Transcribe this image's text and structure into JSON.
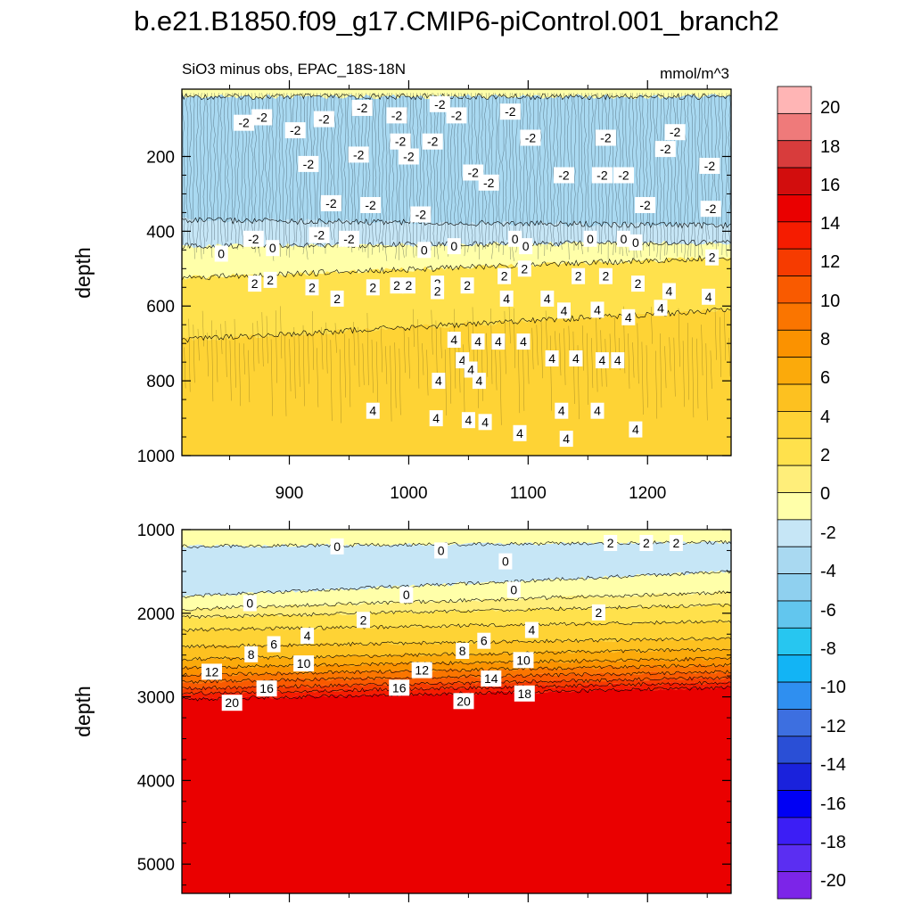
{
  "title": "b.e21.B1850.f09_g17.CMIP6-piControl.001_branch2",
  "colors": {
    "levels": [
      "#7c25e8",
      "#5b2ef2",
      "#3c1ef5",
      "#0000f4",
      "#1a22dc",
      "#2a4fd6",
      "#3d6fe0",
      "#2f8ff0",
      "#12b4f5",
      "#27c6f0",
      "#62c6ee",
      "#8fd0ef",
      "#a9d9f1",
      "#c6e6f6",
      "#ffffa9",
      "#ffee7a",
      "#ffe14c",
      "#fed335",
      "#fdc120",
      "#fbaa0b",
      "#fb9200",
      "#fa7500",
      "#f95a00",
      "#f63b00",
      "#f51c00",
      "#ea0000",
      "#d20d0d",
      "#d83c3c",
      "#ef7a7a",
      "#ffb5b5"
    ],
    "background": "#ffffff"
  },
  "chart_data": [
    {
      "type": "contour",
      "subtitle_left": "SiO3 minus obs, EPAC_18S-18N",
      "subtitle_right": "mmol/m^3",
      "ylabel": "depth",
      "xlabel": "",
      "xlim": [
        810,
        1270
      ],
      "ylim": [
        1000,
        20
      ],
      "yreverse": true,
      "xticks": [
        900,
        1000,
        1100,
        1200
      ],
      "xtick_labels": [
        "900",
        "1000",
        "1100",
        "1200"
      ],
      "yticks": [
        200,
        400,
        600,
        800,
        1000
      ],
      "ytick_labels": [
        "200",
        "400",
        "600",
        "800",
        "1000"
      ],
      "bands": [
        {
          "level": 0,
          "top": [
            20,
            20
          ],
          "bottom": [
            40,
            40
          ]
        },
        {
          "level": -2,
          "top": [
            40,
            40
          ],
          "bottom": [
            370,
            385
          ]
        },
        {
          "level": -1,
          "top": [
            370,
            385
          ],
          "bottom": [
            440,
            430
          ]
        },
        {
          "level": 0,
          "top": [
            440,
            430
          ],
          "bottom": [
            525,
            470
          ]
        },
        {
          "level": 2,
          "top": [
            525,
            470
          ],
          "bottom": [
            690,
            610
          ]
        },
        {
          "level": 4,
          "top": [
            690,
            610
          ],
          "bottom": [
            1000,
            1000
          ]
        }
      ],
      "contour_labels": [
        {
          "x": 862,
          "y": 110,
          "t": "-2"
        },
        {
          "x": 877,
          "y": 95,
          "t": "-2"
        },
        {
          "x": 905,
          "y": 130,
          "t": "-2"
        },
        {
          "x": 929,
          "y": 100,
          "t": "-2"
        },
        {
          "x": 961,
          "y": 70,
          "t": "-2"
        },
        {
          "x": 990,
          "y": 90,
          "t": "-2"
        },
        {
          "x": 1026,
          "y": 60,
          "t": "-2"
        },
        {
          "x": 1040,
          "y": 90,
          "t": "-2"
        },
        {
          "x": 1085,
          "y": 80,
          "t": "-2"
        },
        {
          "x": 1102,
          "y": 150,
          "t": "-2"
        },
        {
          "x": 1165,
          "y": 150,
          "t": "-2"
        },
        {
          "x": 1223,
          "y": 135,
          "t": "-2"
        },
        {
          "x": 1215,
          "y": 180,
          "t": "-2"
        },
        {
          "x": 1252,
          "y": 225,
          "t": "-2"
        },
        {
          "x": 916,
          "y": 220,
          "t": "-2"
        },
        {
          "x": 958,
          "y": 195,
          "t": "-2"
        },
        {
          "x": 1000,
          "y": 200,
          "t": "-2"
        },
        {
          "x": 1054,
          "y": 243,
          "t": "-2"
        },
        {
          "x": 1130,
          "y": 250,
          "t": "-2"
        },
        {
          "x": 1162,
          "y": 250,
          "t": "-2"
        },
        {
          "x": 1180,
          "y": 250,
          "t": "-2"
        },
        {
          "x": 1198,
          "y": 330,
          "t": "-2"
        },
        {
          "x": 1253,
          "y": 340,
          "t": "-2"
        },
        {
          "x": 935,
          "y": 325,
          "t": "-2"
        },
        {
          "x": 968,
          "y": 330,
          "t": "-2"
        },
        {
          "x": 1010,
          "y": 355,
          "t": "-2"
        },
        {
          "x": 870,
          "y": 420,
          "t": "-2"
        },
        {
          "x": 925,
          "y": 410,
          "t": "-2"
        },
        {
          "x": 950,
          "y": 420,
          "t": "-2"
        },
        {
          "x": 1067,
          "y": 270,
          "t": "-2"
        },
        {
          "x": 1020,
          "y": 160,
          "t": "-2"
        },
        {
          "x": 993,
          "y": 160,
          "t": "-2"
        },
        {
          "x": 843,
          "y": 460,
          "t": "0"
        },
        {
          "x": 886,
          "y": 445,
          "t": "0"
        },
        {
          "x": 1038,
          "y": 440,
          "t": "0"
        },
        {
          "x": 1089,
          "y": 420,
          "t": "0"
        },
        {
          "x": 1152,
          "y": 420,
          "t": "0"
        },
        {
          "x": 1180,
          "y": 420,
          "t": "0"
        },
        {
          "x": 1190,
          "y": 430,
          "t": "0"
        },
        {
          "x": 1098,
          "y": 440,
          "t": "0"
        },
        {
          "x": 1013,
          "y": 450,
          "t": "0"
        },
        {
          "x": 1254,
          "y": 470,
          "t": "2"
        },
        {
          "x": 1142,
          "y": 520,
          "t": "2"
        },
        {
          "x": 1165,
          "y": 520,
          "t": "2"
        },
        {
          "x": 1192,
          "y": 540,
          "t": "2"
        },
        {
          "x": 1080,
          "y": 520,
          "t": "2"
        },
        {
          "x": 1049,
          "y": 545,
          "t": "2"
        },
        {
          "x": 1024,
          "y": 540,
          "t": "2"
        },
        {
          "x": 990,
          "y": 545,
          "t": "2"
        },
        {
          "x": 970,
          "y": 550,
          "t": "2"
        },
        {
          "x": 919,
          "y": 550,
          "t": "2"
        },
        {
          "x": 884,
          "y": 530,
          "t": "2"
        },
        {
          "x": 871,
          "y": 540,
          "t": "2"
        },
        {
          "x": 1097,
          "y": 500,
          "t": "2"
        },
        {
          "x": 1024,
          "y": 560,
          "t": "2"
        },
        {
          "x": 1000,
          "y": 545,
          "t": "2"
        },
        {
          "x": 940,
          "y": 580,
          "t": "2"
        },
        {
          "x": 1218,
          "y": 560,
          "t": "4"
        },
        {
          "x": 1251,
          "y": 575,
          "t": "4"
        },
        {
          "x": 1211,
          "y": 605,
          "t": "4"
        },
        {
          "x": 1184,
          "y": 630,
          "t": "4"
        },
        {
          "x": 1158,
          "y": 610,
          "t": "4"
        },
        {
          "x": 1116,
          "y": 580,
          "t": "4"
        },
        {
          "x": 1082,
          "y": 580,
          "t": "4"
        },
        {
          "x": 1130,
          "y": 612,
          "t": "4"
        },
        {
          "x": 1038,
          "y": 690,
          "t": "4"
        },
        {
          "x": 1058,
          "y": 695,
          "t": "4"
        },
        {
          "x": 1075,
          "y": 695,
          "t": "4"
        },
        {
          "x": 1096,
          "y": 695,
          "t": "4"
        },
        {
          "x": 1120,
          "y": 740,
          "t": "4"
        },
        {
          "x": 1140,
          "y": 740,
          "t": "4"
        },
        {
          "x": 1162,
          "y": 745,
          "t": "4"
        },
        {
          "x": 1175,
          "y": 745,
          "t": "4"
        },
        {
          "x": 1045,
          "y": 745,
          "t": "4"
        },
        {
          "x": 1052,
          "y": 770,
          "t": "4"
        },
        {
          "x": 1059,
          "y": 800,
          "t": "4"
        },
        {
          "x": 1025,
          "y": 800,
          "t": "4"
        },
        {
          "x": 1023,
          "y": 900,
          "t": "4"
        },
        {
          "x": 1050,
          "y": 905,
          "t": "4"
        },
        {
          "x": 1064,
          "y": 910,
          "t": "4"
        },
        {
          "x": 1093,
          "y": 940,
          "t": "4"
        },
        {
          "x": 1128,
          "y": 880,
          "t": "4"
        },
        {
          "x": 1158,
          "y": 880,
          "t": "4"
        },
        {
          "x": 1190,
          "y": 930,
          "t": "4"
        },
        {
          "x": 970,
          "y": 880,
          "t": "4"
        },
        {
          "x": 1132,
          "y": 955,
          "t": "4"
        }
      ]
    },
    {
      "type": "contour",
      "ylabel": "depth",
      "xlabel": "",
      "xlim": [
        810,
        1270
      ],
      "ylim": [
        5350,
        1000
      ],
      "yreverse": true,
      "xticks": [
        900,
        1000,
        1100,
        1200
      ],
      "xtick_labels": [],
      "yticks": [
        1000,
        2000,
        3000,
        4000,
        5000
      ],
      "ytick_labels": [
        "1000",
        "2000",
        "3000",
        "4000",
        "5000"
      ],
      "bands": [
        {
          "level": 0,
          "top": [
            1000,
            1000
          ],
          "bottom": [
            1200,
            1150
          ]
        },
        {
          "level": -1,
          "top": [
            1200,
            1150
          ],
          "bottom": [
            1800,
            1500
          ]
        },
        {
          "level": 0,
          "top": [
            1800,
            1500
          ],
          "bottom": [
            1950,
            1750
          ]
        },
        {
          "level": 1,
          "top": [
            1950,
            1750
          ],
          "bottom": [
            2050,
            1900
          ]
        },
        {
          "level": 2,
          "top": [
            2050,
            1900
          ],
          "bottom": [
            2200,
            2100
          ]
        },
        {
          "level": 4,
          "top": [
            2200,
            2100
          ],
          "bottom": [
            2400,
            2300
          ]
        },
        {
          "level": 6,
          "top": [
            2400,
            2300
          ],
          "bottom": [
            2550,
            2430
          ]
        },
        {
          "level": 8,
          "top": [
            2550,
            2430
          ],
          "bottom": [
            2650,
            2540
          ]
        },
        {
          "level": 10,
          "top": [
            2650,
            2540
          ],
          "bottom": [
            2740,
            2620
          ]
        },
        {
          "level": 12,
          "top": [
            2740,
            2620
          ],
          "bottom": [
            2820,
            2700
          ]
        },
        {
          "level": 14,
          "top": [
            2820,
            2700
          ],
          "bottom": [
            2900,
            2770
          ]
        },
        {
          "level": 16,
          "top": [
            2900,
            2770
          ],
          "bottom": [
            2960,
            2830
          ]
        },
        {
          "level": 18,
          "top": [
            2960,
            2830
          ],
          "bottom": [
            3030,
            2890
          ]
        },
        {
          "level": 20,
          "top": [
            3030,
            2890
          ],
          "bottom": [
            5350,
            5350
          ]
        }
      ],
      "contour_labels": [
        {
          "x": 1169,
          "y": 1160,
          "t": "2"
        },
        {
          "x": 1199,
          "y": 1160,
          "t": "2"
        },
        {
          "x": 1224,
          "y": 1160,
          "t": "2"
        },
        {
          "x": 940,
          "y": 1200,
          "t": "0"
        },
        {
          "x": 1027,
          "y": 1250,
          "t": "0"
        },
        {
          "x": 1081,
          "y": 1380,
          "t": "0"
        },
        {
          "x": 998,
          "y": 1780,
          "t": "0"
        },
        {
          "x": 867,
          "y": 1880,
          "t": "0"
        },
        {
          "x": 1088,
          "y": 1720,
          "t": "0"
        },
        {
          "x": 962,
          "y": 2080,
          "t": "2"
        },
        {
          "x": 1159,
          "y": 1990,
          "t": "2"
        },
        {
          "x": 915,
          "y": 2270,
          "t": "4"
        },
        {
          "x": 1103,
          "y": 2200,
          "t": "4"
        },
        {
          "x": 887,
          "y": 2370,
          "t": "6"
        },
        {
          "x": 1063,
          "y": 2330,
          "t": "6"
        },
        {
          "x": 868,
          "y": 2490,
          "t": "8"
        },
        {
          "x": 1045,
          "y": 2450,
          "t": "8"
        },
        {
          "x": 912,
          "y": 2600,
          "t": "10"
        },
        {
          "x": 1096,
          "y": 2560,
          "t": "10"
        },
        {
          "x": 835,
          "y": 2700,
          "t": "12"
        },
        {
          "x": 1011,
          "y": 2680,
          "t": "12"
        },
        {
          "x": 1069,
          "y": 2780,
          "t": "14"
        },
        {
          "x": 881,
          "y": 2900,
          "t": "16"
        },
        {
          "x": 992,
          "y": 2890,
          "t": "16"
        },
        {
          "x": 1097,
          "y": 2960,
          "t": "18"
        },
        {
          "x": 852,
          "y": 3070,
          "t": "20"
        },
        {
          "x": 1046,
          "y": 3050,
          "t": "20"
        }
      ]
    }
  ],
  "colorbar": {
    "labels": [
      "20",
      "18",
      "16",
      "14",
      "12",
      "10",
      "8",
      "6",
      "4",
      "2",
      "0",
      "-2",
      "-4",
      "-6",
      "-8",
      "-10",
      "-12",
      "-14",
      "-16",
      "-18",
      "-20"
    ]
  }
}
